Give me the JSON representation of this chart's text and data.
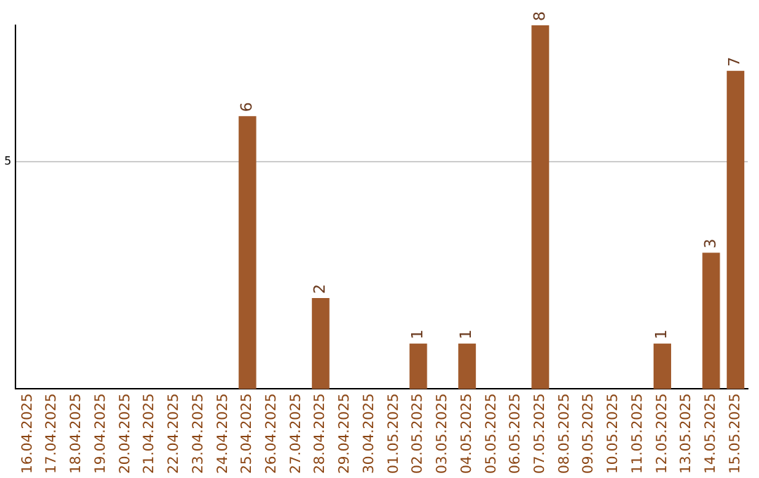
{
  "chart_data": {
    "type": "bar",
    "categories": [
      "16.04.2025",
      "17.04.2025",
      "18.04.2025",
      "19.04.2025",
      "20.04.2025",
      "21.04.2025",
      "22.04.2025",
      "23.04.2025",
      "24.04.2025",
      "25.04.2025",
      "26.04.2025",
      "27.04.2025",
      "28.04.2025",
      "29.04.2025",
      "30.04.2025",
      "01.05.2025",
      "02.05.2025",
      "03.05.2025",
      "04.05.2025",
      "05.05.2025",
      "06.05.2025",
      "07.05.2025",
      "08.05.2025",
      "09.05.2025",
      "10.05.2025",
      "11.05.2025",
      "12.05.2025",
      "13.05.2025",
      "14.05.2025",
      "15.05.2025"
    ],
    "values": [
      null,
      null,
      null,
      null,
      null,
      null,
      null,
      null,
      null,
      6,
      null,
      null,
      2,
      null,
      null,
      null,
      1,
      null,
      1,
      null,
      null,
      8,
      null,
      null,
      null,
      null,
      1,
      null,
      3,
      7
    ],
    "color": "#a0592b",
    "ylim": [
      0,
      8
    ],
    "yticks": [
      5
    ],
    "grid": "y",
    "data_labels": true,
    "legend": false
  }
}
